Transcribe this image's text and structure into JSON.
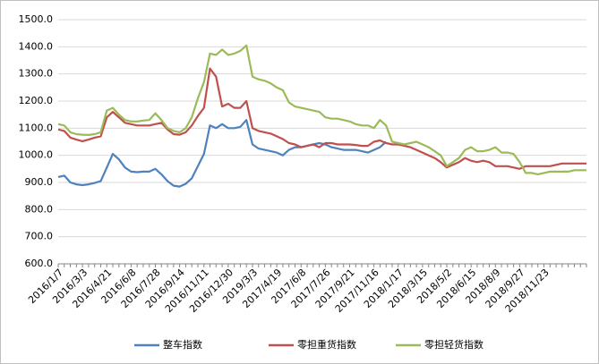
{
  "chart_data": {
    "type": "line",
    "categories": [
      "2016/1/7",
      null,
      null,
      null,
      "2016/3/3",
      null,
      null,
      null,
      "2016/4/21",
      null,
      null,
      null,
      "2016/6/8",
      null,
      null,
      null,
      "2016/7/28",
      null,
      null,
      null,
      "2016/9/14",
      null,
      null,
      null,
      "2016/11/11",
      null,
      null,
      null,
      "2016/12/30",
      null,
      null,
      null,
      "2019/3/3",
      null,
      null,
      null,
      "2017/4/19",
      null,
      null,
      null,
      "2017/6/8",
      null,
      null,
      null,
      "2017/7/26",
      null,
      null,
      null,
      "2017/9/21",
      null,
      null,
      null,
      "2017/11/16",
      null,
      null,
      null,
      "2018/1/17",
      null,
      null,
      null,
      "2018/3/15",
      null,
      null,
      null,
      "2018/5/2",
      null,
      null,
      null,
      "2018/6/15",
      null,
      null,
      null,
      "2018/8/9",
      null,
      null,
      null,
      "2018/9/27",
      null,
      null,
      null,
      "2018/11/23",
      null,
      null,
      null,
      null,
      null,
      null,
      null
    ],
    "series": [
      {
        "name": "整车指数",
        "color": "#4f81bd",
        "values": [
          920,
          925,
          900,
          893,
          890,
          893,
          898,
          905,
          955,
          1005,
          985,
          955,
          940,
          938,
          940,
          940,
          950,
          930,
          905,
          888,
          885,
          895,
          915,
          960,
          1005,
          1110,
          1100,
          1115,
          1100,
          1100,
          1105,
          1130,
          1040,
          1025,
          1020,
          1015,
          1010,
          1000,
          1020,
          1030,
          1030,
          1035,
          1040,
          1045,
          1040,
          1030,
          1025,
          1020,
          1020,
          1020,
          1015,
          1010,
          1020,
          1030,
          1050,
          null,
          null,
          null,
          null,
          null,
          null,
          null,
          null,
          null,
          null,
          null,
          null,
          null,
          null,
          null,
          null,
          null,
          null,
          null,
          null,
          null,
          null,
          null,
          null,
          null,
          null,
          null,
          null,
          null,
          null,
          null,
          null,
          null
        ]
      },
      {
        "name": "零担重货指数",
        "color": "#c0504d",
        "values": [
          1095,
          1090,
          1065,
          1058,
          1052,
          1058,
          1065,
          1070,
          1140,
          1160,
          1140,
          1120,
          1115,
          1110,
          1110,
          1110,
          1115,
          1120,
          1095,
          1078,
          1076,
          1085,
          1110,
          1145,
          1175,
          1320,
          1290,
          1180,
          1190,
          1175,
          1175,
          1200,
          1100,
          1090,
          1085,
          1080,
          1070,
          1060,
          1045,
          1040,
          1030,
          1035,
          1040,
          1030,
          1045,
          1045,
          1040,
          1040,
          1040,
          1038,
          1035,
          1035,
          1050,
          1055,
          1045,
          1040,
          1040,
          1035,
          1030,
          1020,
          1010,
          1000,
          990,
          975,
          955,
          965,
          975,
          990,
          980,
          975,
          980,
          975,
          960,
          960,
          960,
          955,
          950,
          960,
          960,
          960,
          960,
          960,
          965,
          970,
          970,
          970,
          970,
          970
        ]
      },
      {
        "name": "零担轻货指数",
        "color": "#9bbb59",
        "values": [
          1115,
          1110,
          1085,
          1078,
          1076,
          1075,
          1078,
          1085,
          1165,
          1175,
          1150,
          1130,
          1125,
          1125,
          1128,
          1130,
          1155,
          1130,
          1100,
          1090,
          1085,
          1100,
          1140,
          1210,
          1270,
          1375,
          1370,
          1390,
          1370,
          1375,
          1385,
          1405,
          1290,
          1280,
          1275,
          1265,
          1250,
          1240,
          1195,
          1180,
          1175,
          1170,
          1165,
          1160,
          1140,
          1135,
          1135,
          1130,
          1125,
          1115,
          1110,
          1110,
          1100,
          1130,
          1110,
          1050,
          1045,
          1040,
          1045,
          1050,
          1040,
          1030,
          1015,
          1000,
          960,
          975,
          990,
          1020,
          1030,
          1015,
          1015,
          1020,
          1030,
          1010,
          1010,
          1005,
          975,
          935,
          935,
          930,
          935,
          940,
          940,
          940,
          940,
          945,
          945,
          945
        ]
      }
    ],
    "ylim": [
      600,
      1500
    ],
    "yticks": [
      {
        "value": 600,
        "label": "600.0"
      },
      {
        "value": 700,
        "label": "700.0"
      },
      {
        "value": 800,
        "label": "800.0"
      },
      {
        "value": 900,
        "label": "900.0"
      },
      {
        "value": 1000,
        "label": "1000.0"
      },
      {
        "value": 1100,
        "label": "1100.0"
      },
      {
        "value": 1200,
        "label": "1200.0"
      },
      {
        "value": 1300,
        "label": "1300.0"
      },
      {
        "value": 1400,
        "label": "1400.0"
      },
      {
        "value": 1500,
        "label": "1500.0"
      }
    ],
    "grid": true,
    "legend": "bottom"
  }
}
